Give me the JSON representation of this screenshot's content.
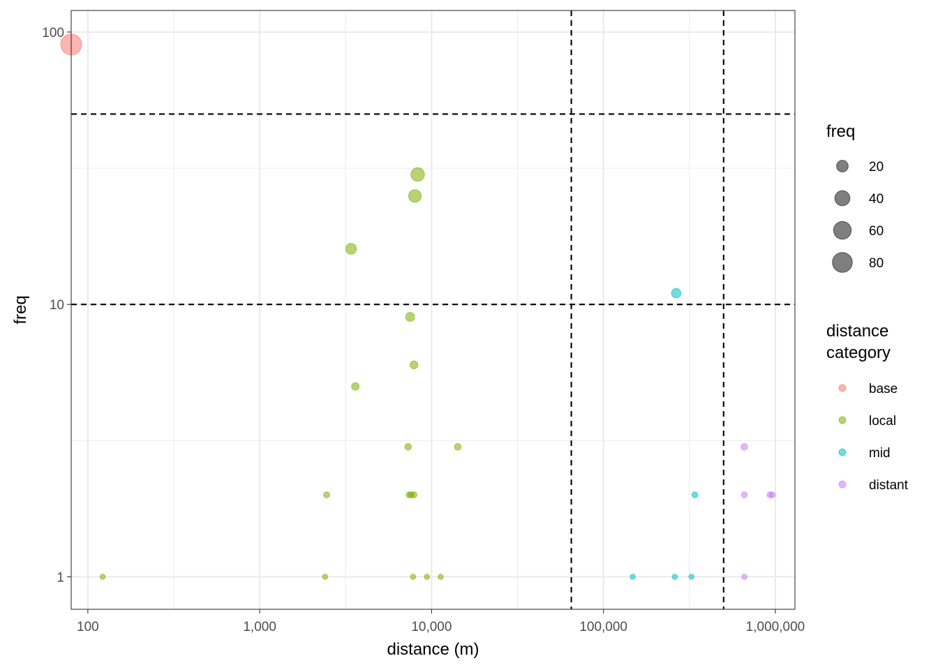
{
  "chart_data": {
    "type": "scatter",
    "xlabel": "distance (m)",
    "ylabel": "freq",
    "x_scale": "log10",
    "y_scale": "log10",
    "xlim": [
      80,
      1300000
    ],
    "ylim": [
      0.76,
      120
    ],
    "x_ticks": [
      100,
      1000,
      10000,
      100000,
      1000000
    ],
    "x_tick_labels": [
      "100",
      "1,000",
      "10,000",
      "100,000",
      "1,000,000"
    ],
    "y_ticks": [
      1,
      10,
      100
    ],
    "y_tick_labels": [
      "1",
      "10",
      "100"
    ],
    "grid": true,
    "reference_lines": {
      "horizontal": [
        10,
        50
      ],
      "vertical": [
        65000,
        500000
      ],
      "style": "dashed"
    },
    "legend_position": "right",
    "size_legend": {
      "title": "freq",
      "values": [
        20,
        40,
        60,
        80
      ],
      "labels": [
        "20",
        "40",
        "60",
        "80"
      ]
    },
    "color_legend": {
      "title_lines": [
        "distance",
        "category"
      ],
      "categories": [
        {
          "name": "base",
          "color": "#F8766D"
        },
        {
          "name": "local",
          "color": "#7CAE00"
        },
        {
          "name": "mid",
          "color": "#00BFC4"
        },
        {
          "name": "distant",
          "color": "#C77CFF"
        }
      ]
    },
    "series": [
      {
        "name": "base",
        "points": [
          {
            "x": 80,
            "y": 90
          }
        ]
      },
      {
        "name": "local",
        "points": [
          {
            "x": 122,
            "y": 1
          },
          {
            "x": 2400,
            "y": 1
          },
          {
            "x": 7800,
            "y": 1
          },
          {
            "x": 9400,
            "y": 1
          },
          {
            "x": 11300,
            "y": 1
          },
          {
            "x": 2450,
            "y": 2
          },
          {
            "x": 7400,
            "y": 2
          },
          {
            "x": 7600,
            "y": 2
          },
          {
            "x": 7900,
            "y": 2
          },
          {
            "x": 7300,
            "y": 3
          },
          {
            "x": 14200,
            "y": 3
          },
          {
            "x": 3600,
            "y": 5
          },
          {
            "x": 7900,
            "y": 6
          },
          {
            "x": 7500,
            "y": 9
          },
          {
            "x": 3400,
            "y": 16
          },
          {
            "x": 8000,
            "y": 25
          },
          {
            "x": 8300,
            "y": 30
          }
        ]
      },
      {
        "name": "mid",
        "points": [
          {
            "x": 148000,
            "y": 1
          },
          {
            "x": 260000,
            "y": 1
          },
          {
            "x": 325000,
            "y": 1
          },
          {
            "x": 340000,
            "y": 2
          },
          {
            "x": 265000,
            "y": 11
          }
        ]
      },
      {
        "name": "distant",
        "points": [
          {
            "x": 660000,
            "y": 1
          },
          {
            "x": 660000,
            "y": 2
          },
          {
            "x": 930000,
            "y": 2
          },
          {
            "x": 960000,
            "y": 2
          },
          {
            "x": 660000,
            "y": 3
          }
        ]
      }
    ]
  }
}
